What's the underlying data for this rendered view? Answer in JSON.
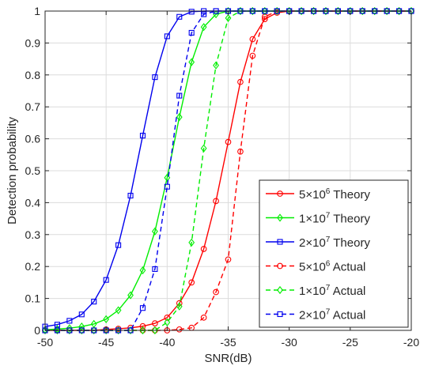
{
  "chart_data": {
    "type": "line",
    "xlabel": "SNR(dB)",
    "ylabel": "Detection probability",
    "xlim": [
      -50,
      -20
    ],
    "ylim": [
      0,
      1
    ],
    "grid": true,
    "legend_position": "bottom-right",
    "x_ticks": [
      "-50",
      "-45",
      "-40",
      "-35",
      "-30",
      "-25",
      "-20"
    ],
    "x_tick_values": [
      -50,
      -45,
      -40,
      -35,
      -30,
      -25,
      -20
    ],
    "y_ticks": [
      "0",
      "0.1",
      "0.2",
      "0.3",
      "0.4",
      "0.5",
      "0.6",
      "0.7",
      "0.8",
      "0.9",
      "1"
    ],
    "y_tick_values": [
      0,
      0.1,
      0.2,
      0.3,
      0.4,
      0.5,
      0.6,
      0.7,
      0.8,
      0.9,
      1
    ],
    "x": [
      -50,
      -49,
      -48,
      -47,
      -46,
      -45,
      -44,
      -43,
      -42,
      -41,
      -40,
      -39,
      -38,
      -37,
      -36,
      -35,
      -34,
      -33,
      -32,
      -31,
      -30,
      -29,
      -28,
      -27,
      -26,
      -25,
      -24,
      -23,
      -22,
      -21,
      -20
    ],
    "series": [
      {
        "name": "5×10⁶ Theory",
        "legend_base": "5×10",
        "legend_exp": "6",
        "legend_suffix": "Theory",
        "color": "#ff0000",
        "dashed": false,
        "marker": "circle",
        "values": [
          0.0,
          0.0,
          0.0,
          0.0,
          0.0,
          0.003,
          0.005,
          0.008,
          0.013,
          0.022,
          0.04,
          0.085,
          0.15,
          0.255,
          0.405,
          0.59,
          0.778,
          0.912,
          0.975,
          0.995,
          1.0,
          1.0,
          1.0,
          1.0,
          1.0,
          1.0,
          1.0,
          1.0,
          1.0,
          1.0,
          1.0
        ]
      },
      {
        "name": "1×10⁷ Theory",
        "legend_base": "1×10",
        "legend_exp": "7",
        "legend_suffix": "Theory",
        "color": "#00ee00",
        "dashed": false,
        "marker": "diamond",
        "values": [
          0.002,
          0.004,
          0.007,
          0.012,
          0.02,
          0.035,
          0.063,
          0.11,
          0.188,
          0.31,
          0.478,
          0.668,
          0.84,
          0.95,
          0.99,
          1.0,
          1.0,
          1.0,
          1.0,
          1.0,
          1.0,
          1.0,
          1.0,
          1.0,
          1.0,
          1.0,
          1.0,
          1.0,
          1.0,
          1.0,
          1.0
        ]
      },
      {
        "name": "2×10⁷ Theory",
        "legend_base": "2×10",
        "legend_exp": "7",
        "legend_suffix": "Theory",
        "color": "#0000ee",
        "dashed": false,
        "marker": "square",
        "values": [
          0.012,
          0.018,
          0.03,
          0.05,
          0.09,
          0.158,
          0.267,
          0.422,
          0.61,
          0.793,
          0.921,
          0.982,
          0.998,
          1.0,
          1.0,
          1.0,
          1.0,
          1.0,
          1.0,
          1.0,
          1.0,
          1.0,
          1.0,
          1.0,
          1.0,
          1.0,
          1.0,
          1.0,
          1.0,
          1.0,
          1.0
        ]
      },
      {
        "name": "5×10⁶ Actual",
        "legend_base": "5×10",
        "legend_exp": "6",
        "legend_suffix": "Actual",
        "color": "#ff0000",
        "dashed": true,
        "marker": "circle",
        "values": [
          0.0,
          0.0,
          0.0,
          0.0,
          0.0,
          0.0,
          0.0,
          0.0,
          0.0,
          0.0,
          0.0,
          0.003,
          0.008,
          0.04,
          0.12,
          0.222,
          0.56,
          0.86,
          0.982,
          1.0,
          1.0,
          1.0,
          1.0,
          1.0,
          1.0,
          1.0,
          1.0,
          1.0,
          1.0,
          1.0,
          1.0
        ]
      },
      {
        "name": "1×10⁷ Actual",
        "legend_base": "1×10",
        "legend_exp": "7",
        "legend_suffix": "Actual",
        "color": "#00ee00",
        "dashed": true,
        "marker": "diamond",
        "values": [
          0.0,
          0.0,
          0.0,
          0.0,
          0.0,
          0.0,
          0.0,
          0.0,
          0.0,
          0.0,
          0.025,
          0.075,
          0.275,
          0.57,
          0.83,
          0.978,
          1.0,
          1.0,
          1.0,
          1.0,
          1.0,
          1.0,
          1.0,
          1.0,
          1.0,
          1.0,
          1.0,
          1.0,
          1.0,
          1.0,
          1.0
        ]
      },
      {
        "name": "2×10⁷ Actual",
        "legend_base": "2×10",
        "legend_exp": "7",
        "legend_suffix": "Actual",
        "color": "#0000ee",
        "dashed": true,
        "marker": "square",
        "values": [
          0.0,
          0.0,
          0.0,
          0.0,
          0.0,
          0.0,
          0.0,
          0.0,
          0.07,
          0.192,
          0.45,
          0.735,
          0.932,
          0.99,
          1.0,
          1.0,
          1.0,
          1.0,
          1.0,
          1.0,
          1.0,
          1.0,
          1.0,
          1.0,
          1.0,
          1.0,
          1.0,
          1.0,
          1.0,
          1.0,
          1.0
        ]
      }
    ]
  }
}
